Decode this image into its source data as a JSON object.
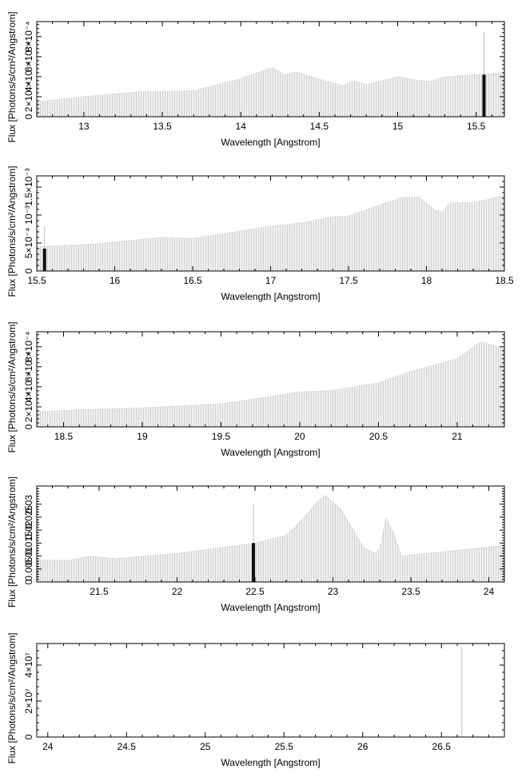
{
  "chart_data": [
    {
      "type": "bar",
      "xlabel": "Wavelength [Angstrom]",
      "ylabel": "Flux [Photons/s/cm²/Angstrom]",
      "xlim": [
        12.7,
        15.68
      ],
      "ylim": [
        0,
        0.00095
      ],
      "x_ticks": [
        13,
        13.5,
        14,
        14.5,
        15,
        15.5
      ],
      "x_tick_labels": [
        "13",
        "13.5",
        "14",
        "14.5",
        "15",
        "15.5"
      ],
      "y_ticks": [
        0,
        0.0002,
        0.0004,
        0.0006,
        0.0008
      ],
      "y_tick_labels": [
        "0",
        "2×10⁻⁴",
        "4×10⁻⁴",
        "6×10⁻⁴",
        "8×10⁻⁴"
      ],
      "profile": [
        [
          12.7,
          0.00015
        ],
        [
          13.0,
          0.0002
        ],
        [
          13.35,
          0.00025
        ],
        [
          13.5,
          0.00025
        ],
        [
          13.7,
          0.00026
        ],
        [
          14.0,
          0.00038
        ],
        [
          14.2,
          0.00049
        ],
        [
          14.28,
          0.00042
        ],
        [
          14.35,
          0.00045
        ],
        [
          14.55,
          0.00035
        ],
        [
          14.65,
          0.00031
        ],
        [
          14.72,
          0.00036
        ],
        [
          14.8,
          0.00032
        ],
        [
          15.0,
          0.0004
        ],
        [
          15.1,
          0.00037
        ],
        [
          15.2,
          0.00035
        ],
        [
          15.3,
          0.0004
        ],
        [
          15.5,
          0.00042
        ],
        [
          15.68,
          0.00044
        ]
      ],
      "spikes": [
        {
          "x": 15.55,
          "y": 0.00085,
          "bold_y": 0.00042
        }
      ]
    },
    {
      "type": "bar",
      "xlabel": "Wavelength [Angstrom]",
      "ylabel": "Flux [Photons/s/cm²/Angstrom]",
      "xlim": [
        15.5,
        18.5
      ],
      "ylim": [
        0,
        0.0017
      ],
      "x_ticks": [
        15.5,
        16,
        16.5,
        17,
        17.5,
        18,
        18.5
      ],
      "x_tick_labels": [
        "15.5",
        "16",
        "16.5",
        "17",
        "17.5",
        "18",
        "18.5"
      ],
      "y_ticks": [
        0,
        0.0005,
        0.001,
        0.0015
      ],
      "y_tick_labels": [
        "0",
        "5×10⁻⁴",
        "10⁻³",
        "1.5×10⁻³"
      ],
      "profile": [
        [
          15.5,
          0.00043
        ],
        [
          15.9,
          0.00049
        ],
        [
          16.3,
          0.0006
        ],
        [
          16.5,
          0.00058
        ],
        [
          17.0,
          0.0008
        ],
        [
          17.2,
          0.00086
        ],
        [
          17.4,
          0.00097
        ],
        [
          17.5,
          0.00098
        ],
        [
          17.7,
          0.00118
        ],
        [
          17.85,
          0.00132
        ],
        [
          17.95,
          0.00132
        ],
        [
          18.05,
          0.0011
        ],
        [
          18.1,
          0.00105
        ],
        [
          18.15,
          0.00122
        ],
        [
          18.3,
          0.00122
        ],
        [
          18.5,
          0.00135
        ]
      ],
      "spikes": [
        {
          "x": 15.55,
          "y": 0.0008,
          "bold_y": 0.0004
        }
      ]
    },
    {
      "type": "bar",
      "xlabel": "Wavelength [Angstrom]",
      "ylabel": "Flux [Photons/s/cm²/Angstrom]",
      "xlim": [
        18.33,
        21.3
      ],
      "ylim": [
        0,
        0.00095
      ],
      "x_ticks": [
        18.5,
        19,
        19.5,
        20,
        20.5,
        21
      ],
      "x_tick_labels": [
        "18.5",
        "19",
        "19.5",
        "20",
        "20.5",
        "21"
      ],
      "y_ticks": [
        0,
        0.0002,
        0.0004,
        0.0006,
        0.0008
      ],
      "y_tick_labels": [
        "0",
        "2×10⁻⁴",
        "4×10⁻⁴",
        "6×10⁻⁴",
        "8×10⁻⁴"
      ],
      "profile": [
        [
          18.33,
          0.00015
        ],
        [
          18.6,
          0.00017
        ],
        [
          19.0,
          0.00019
        ],
        [
          19.5,
          0.00023
        ],
        [
          19.8,
          0.0003
        ],
        [
          20.0,
          0.00035
        ],
        [
          20.2,
          0.00036
        ],
        [
          20.5,
          0.00044
        ],
        [
          20.7,
          0.00055
        ],
        [
          21.0,
          0.00068
        ],
        [
          21.15,
          0.00085
        ],
        [
          21.3,
          0.00078
        ]
      ],
      "spikes": []
    },
    {
      "type": "bar",
      "xlabel": "Wavelength [Angstrom]",
      "ylabel": "Flux [Photons/s/cm²/Angstrom]",
      "xlim": [
        21.1,
        24.1
      ],
      "ylim": [
        0,
        0.037
      ],
      "x_ticks": [
        21.5,
        22,
        22.5,
        23,
        23.5,
        24
      ],
      "x_tick_labels": [
        "21.5",
        "22",
        "22.5",
        "23",
        "23.5",
        "24"
      ],
      "y_ticks": [
        0,
        0.005,
        0.01,
        0.015,
        0.02,
        0.025,
        0.03
      ],
      "y_tick_labels": [
        "0",
        "0.005",
        "0.01",
        "0.015",
        "0.02",
        "0.025",
        "0.03"
      ],
      "profile": [
        [
          21.1,
          0.0085
        ],
        [
          21.3,
          0.0083
        ],
        [
          21.45,
          0.01
        ],
        [
          21.6,
          0.009
        ],
        [
          22.0,
          0.011
        ],
        [
          22.5,
          0.015
        ],
        [
          22.7,
          0.018
        ],
        [
          22.8,
          0.024
        ],
        [
          22.9,
          0.031
        ],
        [
          22.95,
          0.0335
        ],
        [
          23.05,
          0.028
        ],
        [
          23.15,
          0.018
        ],
        [
          23.2,
          0.013
        ],
        [
          23.27,
          0.011
        ],
        [
          23.3,
          0.013
        ],
        [
          23.34,
          0.025
        ],
        [
          23.38,
          0.02
        ],
        [
          23.44,
          0.01
        ],
        [
          24.0,
          0.0135
        ],
        [
          24.1,
          0.014
        ]
      ],
      "spikes": [
        {
          "x": 22.49,
          "y": 0.03,
          "bold_y": 0.015
        }
      ]
    },
    {
      "type": "bar",
      "xlabel": "Wavelength [Angstrom]",
      "ylabel": "Flux [Photons/s/cm²/Angstrom]",
      "xlim": [
        23.93,
        26.9
      ],
      "ylim": [
        0,
        52000000
      ],
      "x_ticks": [
        24,
        24.5,
        25,
        25.5,
        26,
        26.5
      ],
      "x_tick_labels": [
        "24",
        "24.5",
        "25",
        "25.5",
        "26",
        "26.5"
      ],
      "y_ticks": [
        0,
        20000000,
        40000000
      ],
      "y_tick_labels": [
        "0",
        "2×10⁷",
        "4×10⁷"
      ],
      "profile": [],
      "spikes": [
        {
          "x": 26.63,
          "y": 50000000,
          "bold_y": 0
        }
      ]
    }
  ]
}
